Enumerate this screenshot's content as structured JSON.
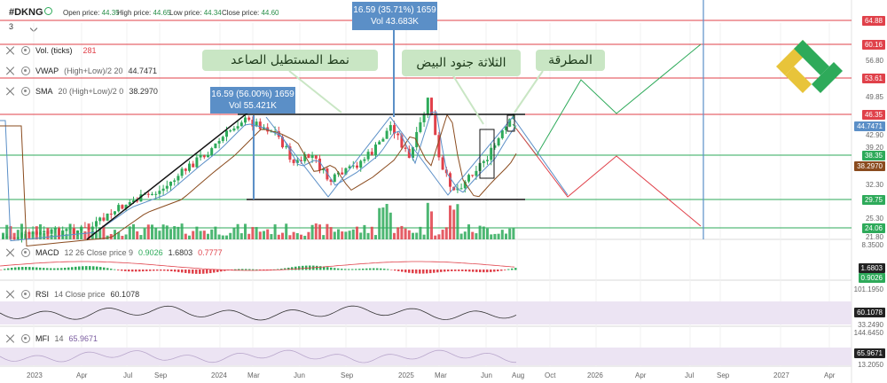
{
  "header": {
    "symbol": "#DKNG",
    "open_label": "Open price:",
    "open_value": "44.35",
    "high_label": "High price:",
    "high_value": "44.65",
    "low_label": "Low price:",
    "low_value": "44.34",
    "close_label": "Close price:",
    "close_value": "44.60"
  },
  "panel_dropdown": "3",
  "indicators": [
    {
      "name": "Vol. (ticks)",
      "params": "",
      "value": "281",
      "color": "#e0414a"
    },
    {
      "name": "VWAP",
      "params": "(High+Low)/2 20",
      "value": "44.7471",
      "color": "#333333"
    },
    {
      "name": "SMA",
      "params": "20 (High+Low)/2 0",
      "value": "38.2970",
      "color": "#333333"
    }
  ],
  "macd": {
    "name": "MACD",
    "params": "12 26 Close price 9",
    "v1": "0.9026",
    "v2": "1.6803",
    "v3": "0.7777"
  },
  "rsi": {
    "name": "RSI",
    "params": "14 Close price",
    "value": "60.1078"
  },
  "mfi": {
    "name": "MFI",
    "params": "14",
    "value": "65.9671"
  },
  "annotations": {
    "rectangle": "نمط المستطيل الصاعد",
    "soldiers": "الثلاثة جنود البيض",
    "hammer": "المطرقة"
  },
  "measure_boxes": [
    {
      "line1": "16.59 (35.71%) 1659",
      "line2": "Vol 43.683K"
    },
    {
      "line1": "16.59 (56.00%) 1659",
      "line2": "Vol 55.421K"
    }
  ],
  "price_tags": [
    {
      "label": "64.88",
      "color": "#e0414a"
    },
    {
      "label": "60.16",
      "color": "#e0414a"
    },
    {
      "label": "53.61",
      "color": "#e0414a"
    },
    {
      "label": "46.35",
      "color": "#e0414a"
    },
    {
      "label": "44.7471",
      "color": "#5b8fc7"
    },
    {
      "label": "38.35",
      "color": "#2eaa5a"
    },
    {
      "label": "38.2970",
      "color": "#8a4b1e"
    },
    {
      "label": "29.75",
      "color": "#2eaa5a"
    },
    {
      "label": "24.06",
      "color": "#2eaa5a"
    },
    {
      "label": "1.6803",
      "color": "#222222"
    },
    {
      "label": "0.9026",
      "color": "#2eaa5a"
    },
    {
      "label": "60.1078",
      "color": "#222222"
    },
    {
      "label": "65.9671",
      "color": "#222222"
    }
  ],
  "price_ticks": [
    "56.80",
    "49.85",
    "42.90",
    "39.20",
    "32.30",
    "25.30",
    "21.80",
    "8.3500",
    "101.1950",
    "33.2490",
    "144.6450",
    "13.2050"
  ],
  "x_labels": [
    "2023",
    "Apr",
    "Jul",
    "Sep",
    "2024",
    "Mar",
    "Jun",
    "Sep",
    "2025",
    "Mar",
    "Jun",
    "Aug",
    "Oct",
    "2026",
    "Apr",
    "Jul",
    "Sep",
    "2027",
    "Apr"
  ],
  "colors": {
    "up": "#2eaa5a",
    "down": "#e0414a",
    "blue": "#5b8fc7"
  }
}
